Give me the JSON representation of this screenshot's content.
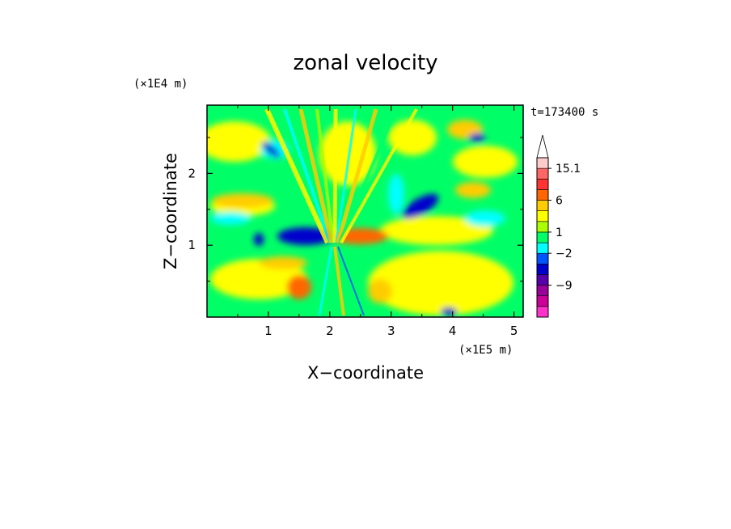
{
  "chart_data": {
    "type": "heatmap",
    "title": "zonal velocity",
    "xlabel": "X−coordinate",
    "ylabel": "Z−coordinate",
    "x_unit_label": "(×1E5 m)",
    "y_unit_label": "(×1E4 m)",
    "time_label": "t=173400 s",
    "xlim": [
      0,
      5.15
    ],
    "ylim": [
      0,
      2.95
    ],
    "x_ticks": [
      1,
      2,
      3,
      4,
      5
    ],
    "x_tick_labels": [
      "1",
      "2",
      "3",
      "4",
      "5"
    ],
    "y_ticks": [
      1,
      2
    ],
    "y_tick_labels": [
      "1",
      "2"
    ],
    "colorbar": {
      "colors": [
        "#ff33cc",
        "#cc0099",
        "#990099",
        "#5500aa",
        "#0000cc",
        "#0055ff",
        "#00ffff",
        "#00ff66",
        "#aaff00",
        "#ffff00",
        "#ffcc00",
        "#ff6600",
        "#ff3333",
        "#ff6666",
        "#ffcccc"
      ],
      "tick_labels": [
        "15.1",
        "6",
        "1",
        "−2",
        "−9"
      ],
      "tick_levels": [
        15.1,
        6,
        1,
        -2,
        -9
      ]
    }
  }
}
